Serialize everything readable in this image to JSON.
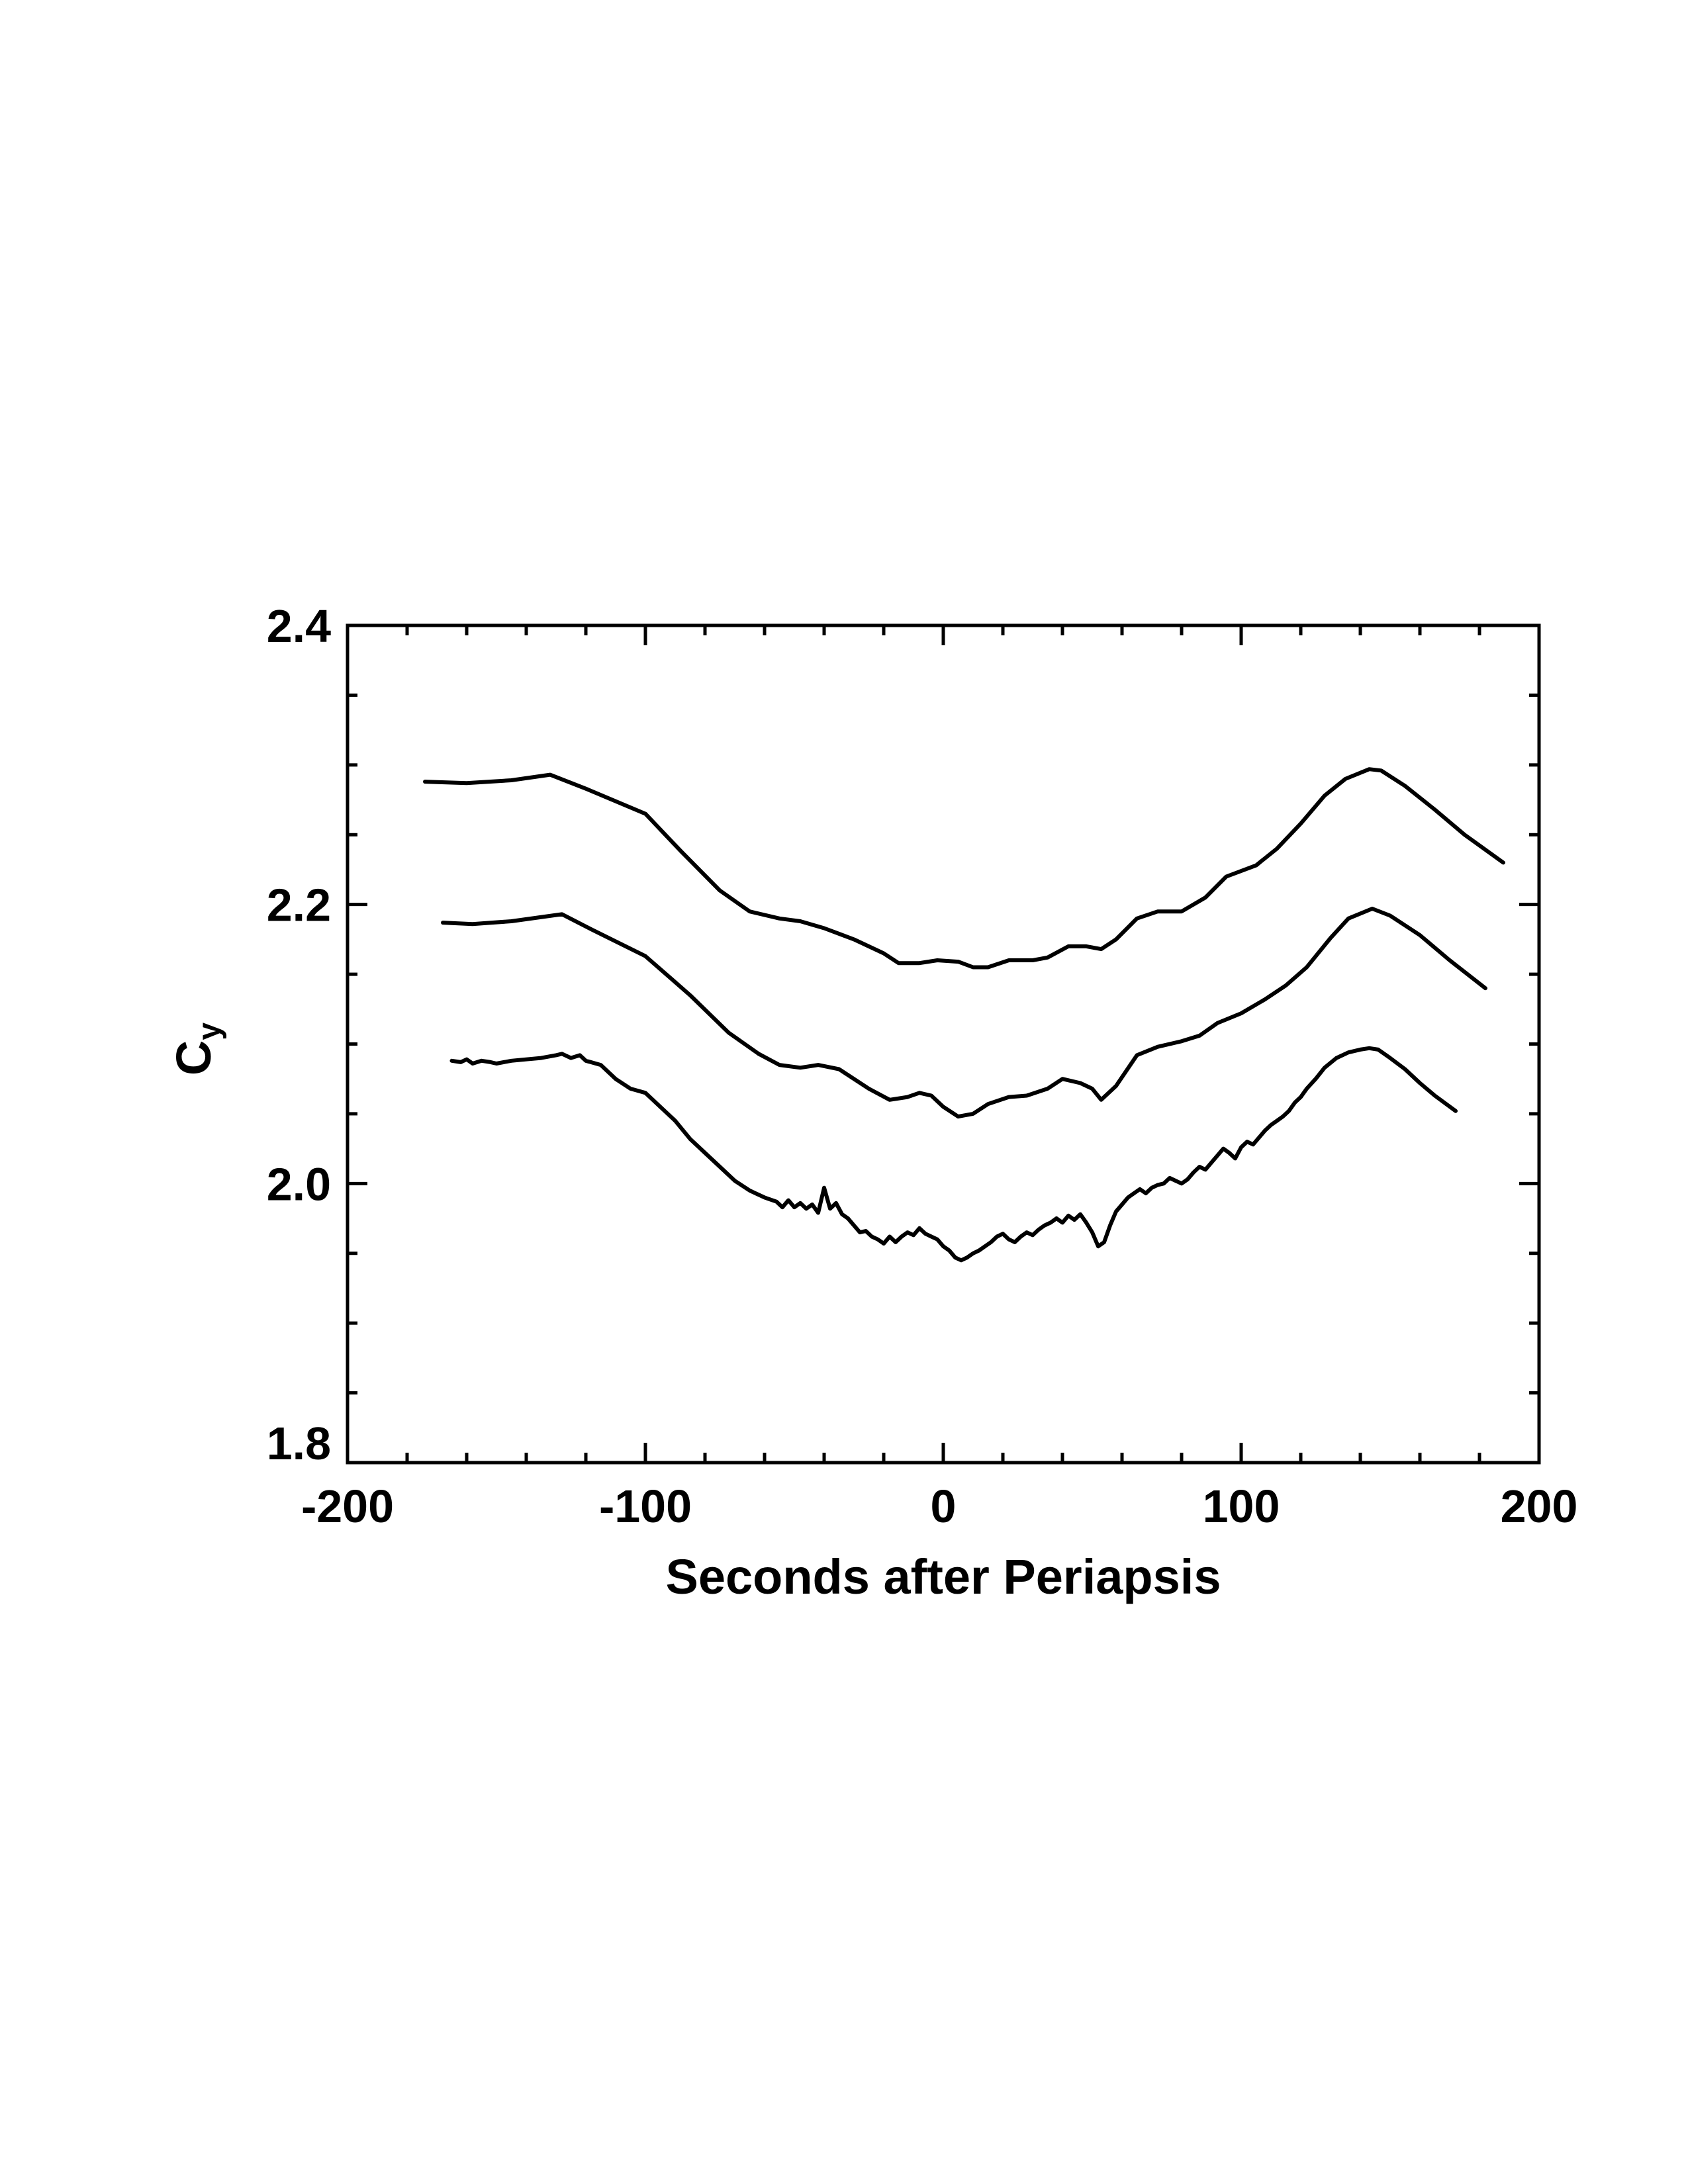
{
  "chart_data": {
    "type": "line",
    "xlabel": "Seconds after Periapsis",
    "ylabel_main": "C",
    "ylabel_sub": "y",
    "xlim": [
      -200,
      200
    ],
    "ylim": [
      1.8,
      2.4
    ],
    "x_ticks": [
      -200,
      -100,
      0,
      100,
      200
    ],
    "x_tick_labels": [
      "-200",
      "-100",
      "0",
      "100",
      "200"
    ],
    "y_ticks": [
      1.8,
      2.0,
      2.2,
      2.4
    ],
    "y_tick_labels": [
      "1.8",
      "2.0",
      "2.2",
      "2.4"
    ],
    "x_minor_step": 20,
    "y_minor_step": 0.05,
    "grid": false,
    "line_color": "#000000",
    "series": [
      {
        "x": [
          -174,
          -160,
          -145,
          -132,
          -120,
          -100,
          -88,
          -75,
          -65,
          -55,
          -48,
          -40,
          -30,
          -20,
          -15,
          -8,
          -2,
          5,
          10,
          15,
          22,
          30,
          35,
          42,
          48,
          53,
          58,
          65,
          72,
          80,
          88,
          95,
          105,
          112,
          120,
          128,
          135,
          143,
          147,
          155,
          165,
          175,
          188
        ],
        "y": [
          2.288,
          2.287,
          2.289,
          2.293,
          2.283,
          2.265,
          2.238,
          2.21,
          2.195,
          2.19,
          2.188,
          2.183,
          2.175,
          2.165,
          2.158,
          2.158,
          2.16,
          2.159,
          2.155,
          2.155,
          2.16,
          2.16,
          2.162,
          2.17,
          2.17,
          2.168,
          2.175,
          2.19,
          2.195,
          2.195,
          2.205,
          2.22,
          2.228,
          2.24,
          2.258,
          2.278,
          2.29,
          2.297,
          2.296,
          2.285,
          2.268,
          2.25,
          2.23
        ]
      },
      {
        "x": [
          -168,
          -158,
          -145,
          -128,
          -118,
          -100,
          -85,
          -72,
          -62,
          -55,
          -48,
          -42,
          -35,
          -25,
          -18,
          -12,
          -8,
          -4,
          0,
          5,
          10,
          15,
          22,
          28,
          35,
          40,
          46,
          50,
          53,
          58,
          65,
          72,
          80,
          86,
          92,
          100,
          108,
          115,
          122,
          130,
          136,
          144,
          150,
          160,
          170,
          182
        ],
        "y": [
          2.187,
          2.186,
          2.188,
          2.193,
          2.182,
          2.163,
          2.135,
          2.108,
          2.093,
          2.085,
          2.083,
          2.085,
          2.082,
          2.068,
          2.06,
          2.062,
          2.065,
          2.063,
          2.055,
          2.048,
          2.05,
          2.057,
          2.062,
          2.063,
          2.068,
          2.075,
          2.072,
          2.068,
          2.06,
          2.07,
          2.092,
          2.098,
          2.102,
          2.106,
          2.115,
          2.122,
          2.132,
          2.142,
          2.155,
          2.176,
          2.19,
          2.197,
          2.192,
          2.178,
          2.16,
          2.14
        ]
      },
      {
        "x": [
          -165,
          -162,
          -160,
          -158,
          -155,
          -152,
          -150,
          -145,
          -140,
          -135,
          -130,
          -128,
          -125,
          -122,
          -120,
          -115,
          -110,
          -105,
          -100,
          -95,
          -90,
          -85,
          -80,
          -75,
          -70,
          -65,
          -60,
          -56,
          -54,
          -52,
          -50,
          -48,
          -46,
          -44,
          -42,
          -40,
          -38,
          -36,
          -34,
          -32,
          -30,
          -28,
          -26,
          -24,
          -22,
          -20,
          -18,
          -16,
          -14,
          -12,
          -10,
          -8,
          -6,
          -4,
          -2,
          0,
          2,
          4,
          6,
          8,
          10,
          12,
          14,
          16,
          18,
          20,
          22,
          24,
          26,
          28,
          30,
          32,
          34,
          36,
          38,
          40,
          42,
          44,
          46,
          48,
          50,
          52,
          54,
          56,
          58,
          60,
          62,
          64,
          66,
          68,
          70,
          72,
          74,
          76,
          78,
          80,
          82,
          84,
          86,
          88,
          90,
          92,
          94,
          96,
          98,
          100,
          102,
          104,
          106,
          108,
          110,
          112,
          114,
          116,
          118,
          120,
          122,
          125,
          128,
          132,
          136,
          140,
          143,
          146,
          150,
          155,
          160,
          165,
          172
        ],
        "y": [
          2.088,
          2.087,
          2.089,
          2.086,
          2.088,
          2.087,
          2.086,
          2.088,
          2.089,
          2.09,
          2.092,
          2.093,
          2.09,
          2.092,
          2.088,
          2.085,
          2.075,
          2.068,
          2.065,
          2.055,
          2.045,
          2.032,
          2.022,
          2.012,
          2.002,
          1.995,
          1.99,
          1.987,
          1.983,
          1.988,
          1.983,
          1.986,
          1.982,
          1.985,
          1.979,
          1.997,
          1.982,
          1.986,
          1.978,
          1.975,
          1.97,
          1.965,
          1.966,
          1.962,
          1.96,
          1.957,
          1.962,
          1.958,
          1.962,
          1.965,
          1.963,
          1.968,
          1.964,
          1.962,
          1.96,
          1.955,
          1.952,
          1.947,
          1.945,
          1.947,
          1.95,
          1.952,
          1.955,
          1.958,
          1.962,
          1.964,
          1.96,
          1.958,
          1.962,
          1.965,
          1.963,
          1.967,
          1.97,
          1.972,
          1.975,
          1.972,
          1.977,
          1.974,
          1.978,
          1.972,
          1.965,
          1.955,
          1.958,
          1.97,
          1.98,
          1.985,
          1.99,
          1.993,
          1.996,
          1.993,
          1.997,
          1.999,
          2.0,
          2.004,
          2.002,
          2.0,
          2.003,
          2.008,
          2.012,
          2.01,
          2.015,
          2.02,
          2.025,
          2.022,
          2.018,
          2.026,
          2.03,
          2.028,
          2.033,
          2.038,
          2.042,
          2.045,
          2.048,
          2.052,
          2.058,
          2.062,
          2.068,
          2.075,
          2.083,
          2.09,
          2.094,
          2.096,
          2.097,
          2.096,
          2.09,
          2.082,
          2.072,
          2.063,
          2.052
        ]
      }
    ]
  }
}
